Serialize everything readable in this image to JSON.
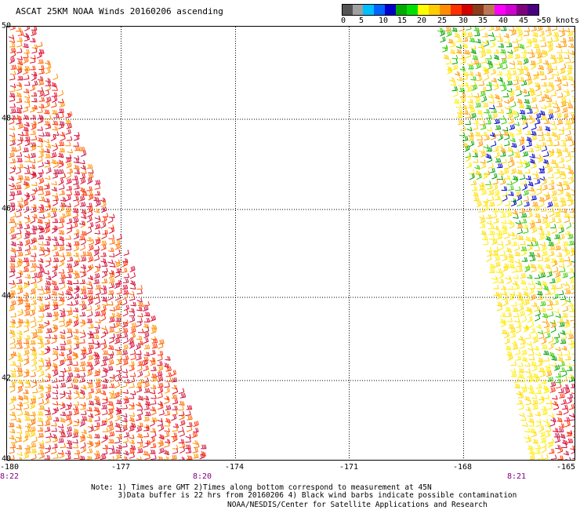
{
  "title": "ASCAT 25KM NOAA Winds 20160206 ascending",
  "legend": {
    "colors": [
      "#555555",
      "#a0a0a0",
      "#00bfff",
      "#0064ff",
      "#0000c8",
      "#00aa00",
      "#00e000",
      "#ffff00",
      "#ffcc00",
      "#ff8c00",
      "#ff3000",
      "#d40000",
      "#8b3a1a",
      "#bb7755",
      "#ff00ff",
      "#d000d0",
      "#800080",
      "#4b0082"
    ],
    "labels": [
      "0",
      "5",
      "10",
      "15",
      "20",
      "25",
      "30",
      "35",
      "40",
      "45",
      ">50 knots"
    ]
  },
  "map": {
    "lat_labels": [
      "50",
      "48",
      "46",
      "44",
      "42",
      "40"
    ],
    "lon_labels": [
      "-180",
      "-177",
      "-174",
      "-171",
      "-168",
      "-165"
    ],
    "time_labels": [
      "8:22",
      "8:20",
      "8:21"
    ]
  },
  "notes": {
    "line1": "Note: 1) Times are GMT 2)Times along bottom correspond to measurement at 45N",
    "line2": "      3)Data buffer is 22 hrs from 20160206 4) Black wind barbs indicate possible contamination"
  },
  "credit": "NOAA/NESDIS/Center for Satellite Applications and Research"
}
